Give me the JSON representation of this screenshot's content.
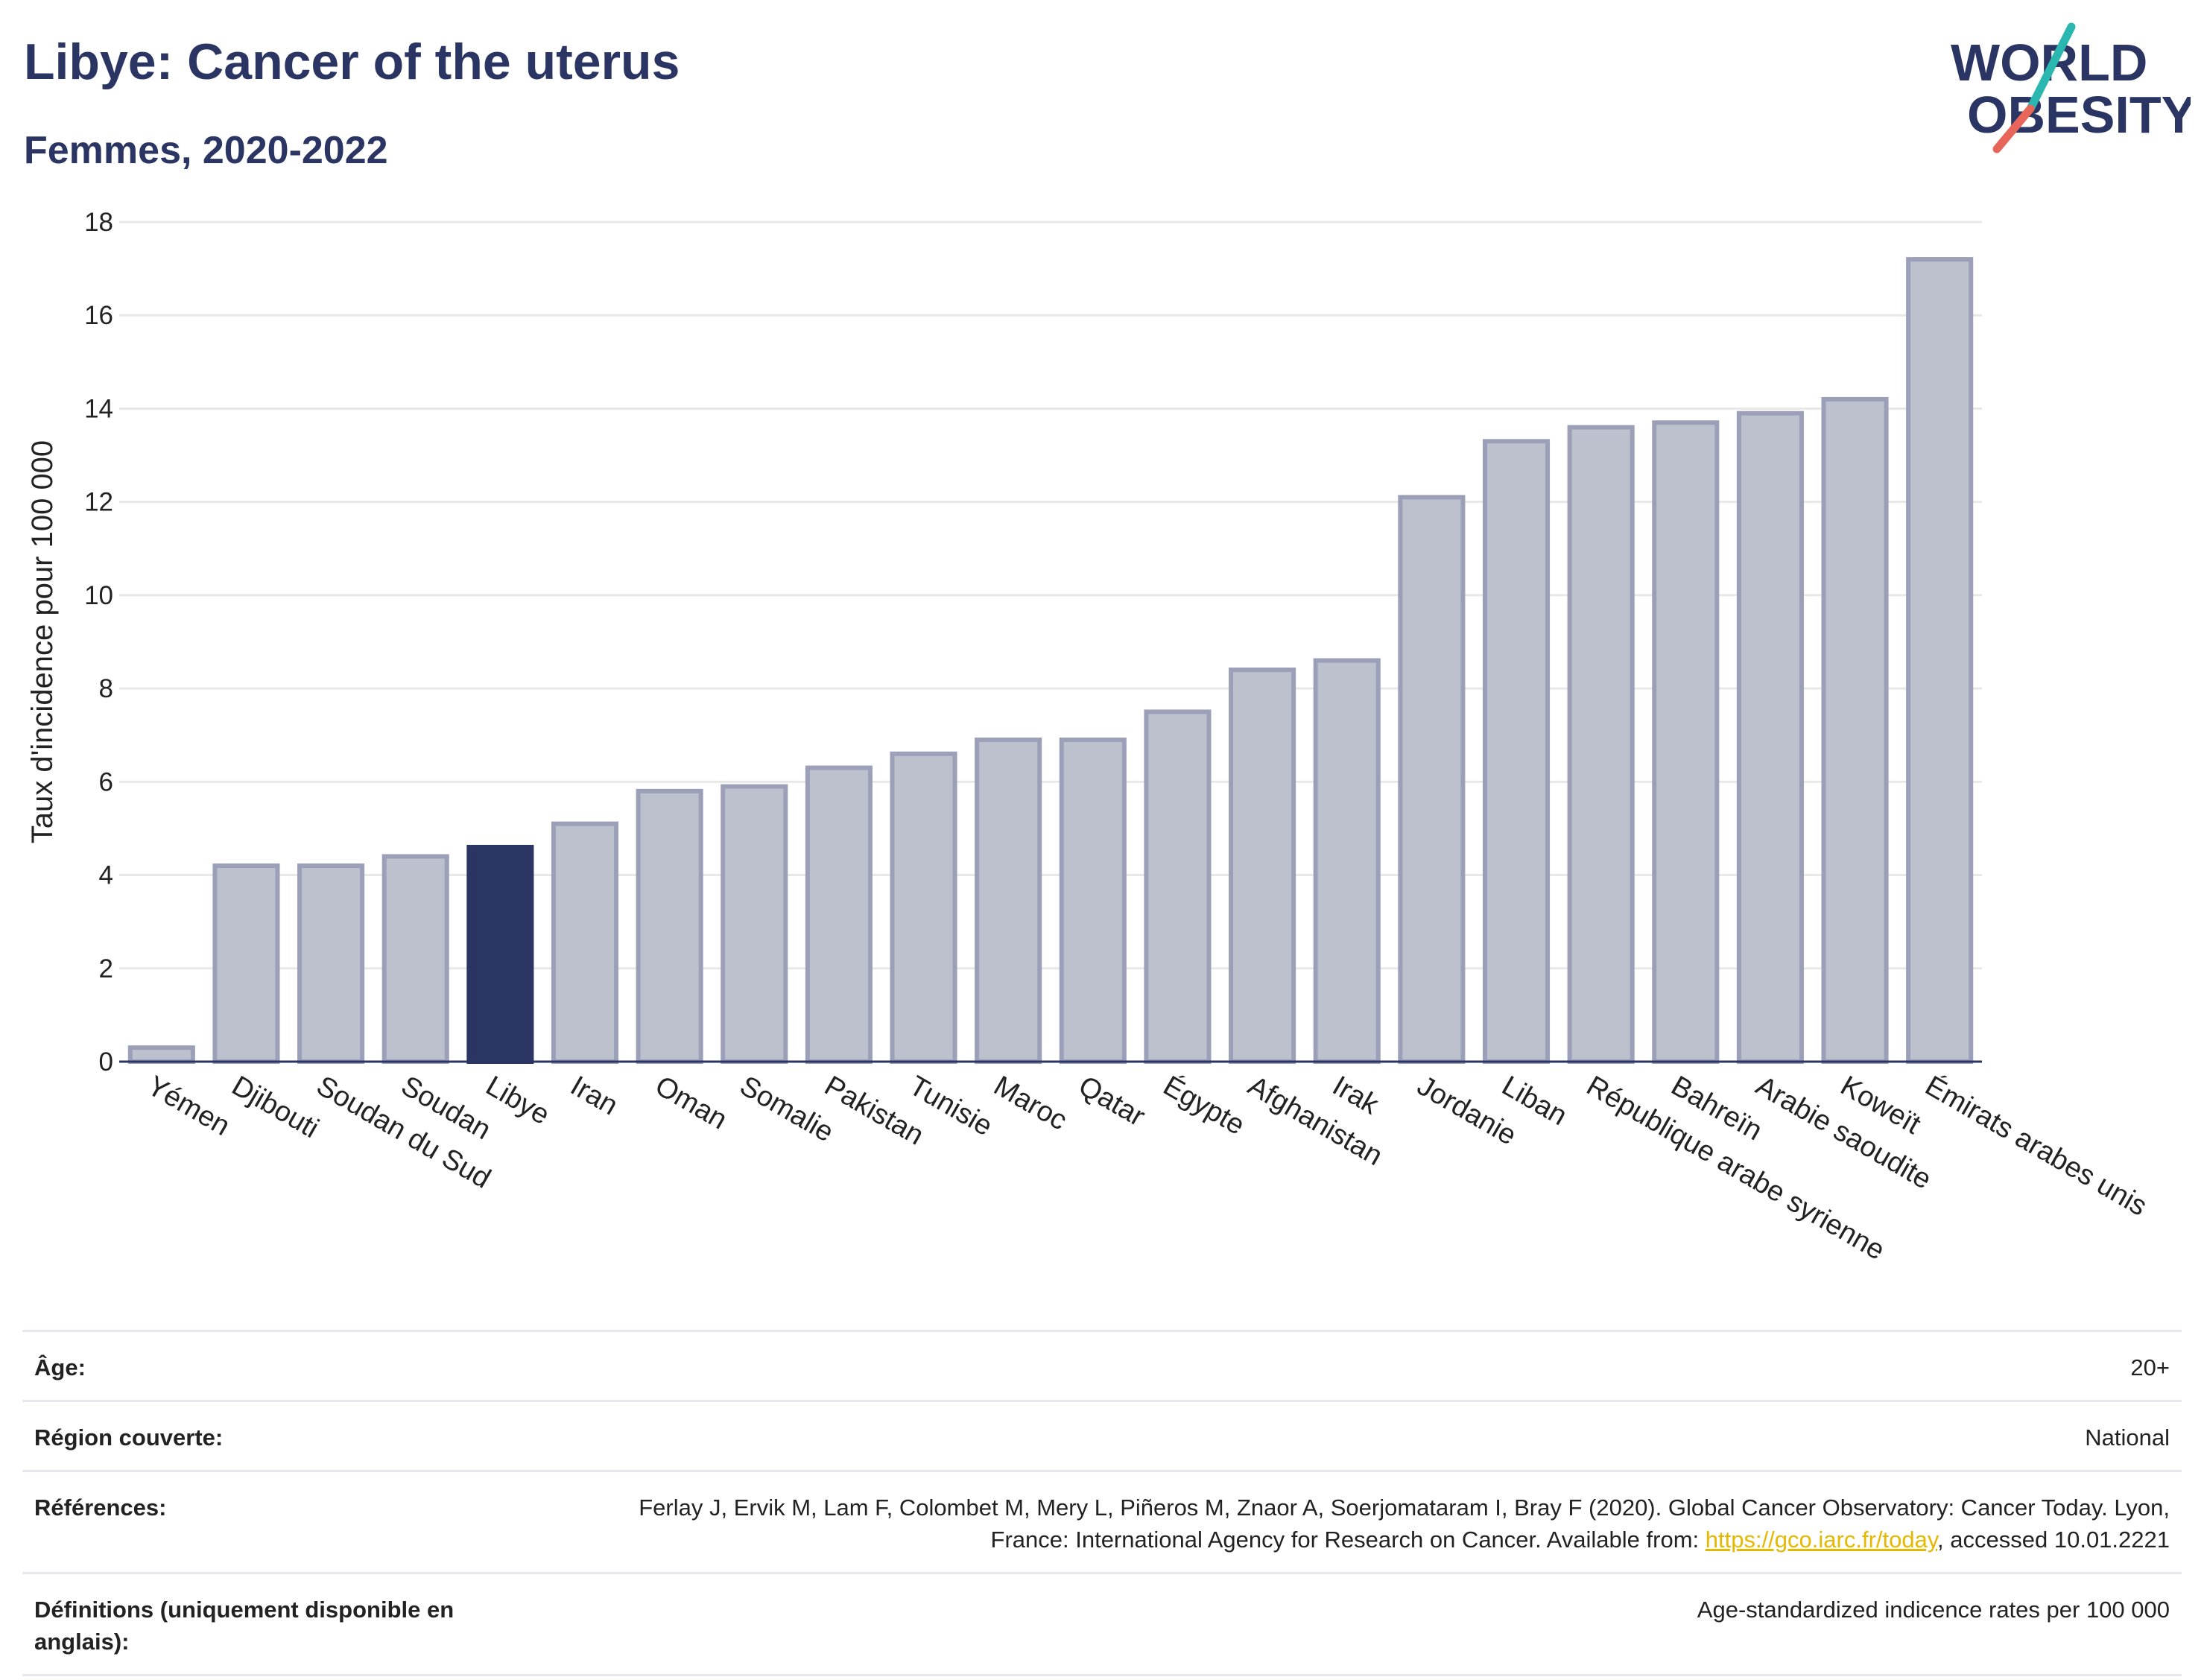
{
  "header": {
    "title": "Libye: Cancer of the uterus",
    "subtitle": "Femmes, 2020-2022"
  },
  "logo": {
    "line1": "WORLD",
    "line2": "OBESITY",
    "colors": {
      "text": "#2a3563",
      "slash_teal": "#2ab7b0",
      "slash_coral": "#e8655a"
    }
  },
  "chart_data": {
    "type": "bar",
    "ylabel": "Taux d'incidence pour 100 000",
    "ylim": [
      0,
      18
    ],
    "yticks": [
      0,
      2,
      4,
      6,
      8,
      10,
      12,
      14,
      16,
      18
    ],
    "grid": true,
    "categories": [
      "Yémen",
      "Djibouti",
      "Soudan du Sud",
      "Soudan",
      "Libye",
      "Iran",
      "Oman",
      "Somalie",
      "Pakistan",
      "Tunisie",
      "Maroc",
      "Qatar",
      "Égypte",
      "Afghanistan",
      "Irak",
      "Jordanie",
      "Liban",
      "République arabe syrienne",
      "Bahreïn",
      "Arabie saoudite",
      "Koweït",
      "Émirats arabes unis"
    ],
    "values": [
      0.3,
      4.2,
      4.2,
      4.4,
      4.6,
      5.1,
      5.8,
      5.9,
      6.3,
      6.6,
      6.9,
      6.9,
      7.5,
      8.4,
      8.6,
      12.1,
      13.3,
      13.6,
      13.7,
      13.9,
      14.2,
      17.2
    ],
    "highlight": "Libye",
    "colors": {
      "bar_fill": "#bdc1ce",
      "bar_stroke": "#9ba0b8",
      "highlight": "#2a3563",
      "grid": "#e8e8e8",
      "axis": "#2a3563"
    }
  },
  "meta": {
    "age_label": "Âge:",
    "age_value": "20+",
    "region_label": "Région couverte:",
    "region_value": "National",
    "refs_label": "Références:",
    "refs_text_1": "Ferlay J, Ervik M, Lam F, Colombet M, Mery L, Piñeros M, Znaor A, Soerjomataram I, Bray F (2020). Global Cancer Observatory: Cancer Today. Lyon, France: International Agency for Research on Cancer. Available from: ",
    "refs_link": "https://gco.iarc.fr/today",
    "refs_text_2": ", accessed 10.01.2221",
    "defs_label": "Définitions (uniquement disponible en anglais):",
    "defs_value": "Age-standardized indicence rates per 100 000"
  }
}
